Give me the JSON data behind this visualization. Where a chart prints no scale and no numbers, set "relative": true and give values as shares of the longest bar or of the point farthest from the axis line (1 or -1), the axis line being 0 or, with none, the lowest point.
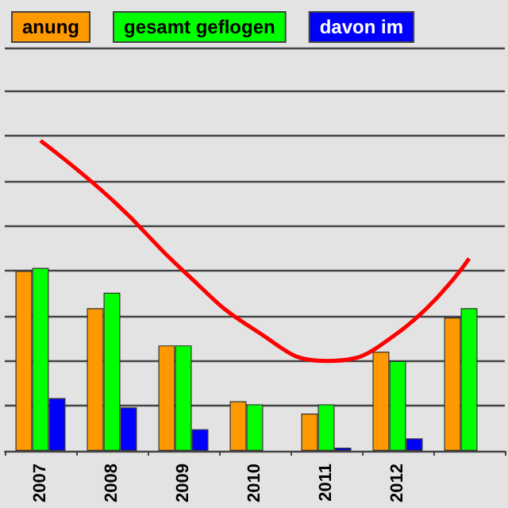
{
  "chart_data": {
    "type": "bar",
    "relative": true,
    "categories": [
      "2007",
      "2008",
      "2009",
      "2010",
      "2011",
      "2012",
      null
    ],
    "grid": "y",
    "legend": "top",
    "series": [
      {
        "name": "anung",
        "color": "#ff9900",
        "values": [
          0.58,
          0.46,
          0.34,
          0.16,
          0.12,
          0.32,
          0.43
        ]
      },
      {
        "name": "gesamt geflogen",
        "color": "#00ff00",
        "values": [
          0.59,
          0.51,
          0.34,
          0.15,
          0.15,
          0.29,
          0.46
        ]
      },
      {
        "name": "davon im",
        "color": "#0000ff",
        "values": [
          0.17,
          0.14,
          0.07,
          null,
          0.01,
          0.04,
          null
        ]
      },
      {
        "type": "line",
        "color": "#ff0000",
        "marker": "none",
        "values": [
          1,
          0.81,
          0.58,
          0.39,
          0.29,
          0.38,
          0.62
        ]
      }
    ]
  }
}
